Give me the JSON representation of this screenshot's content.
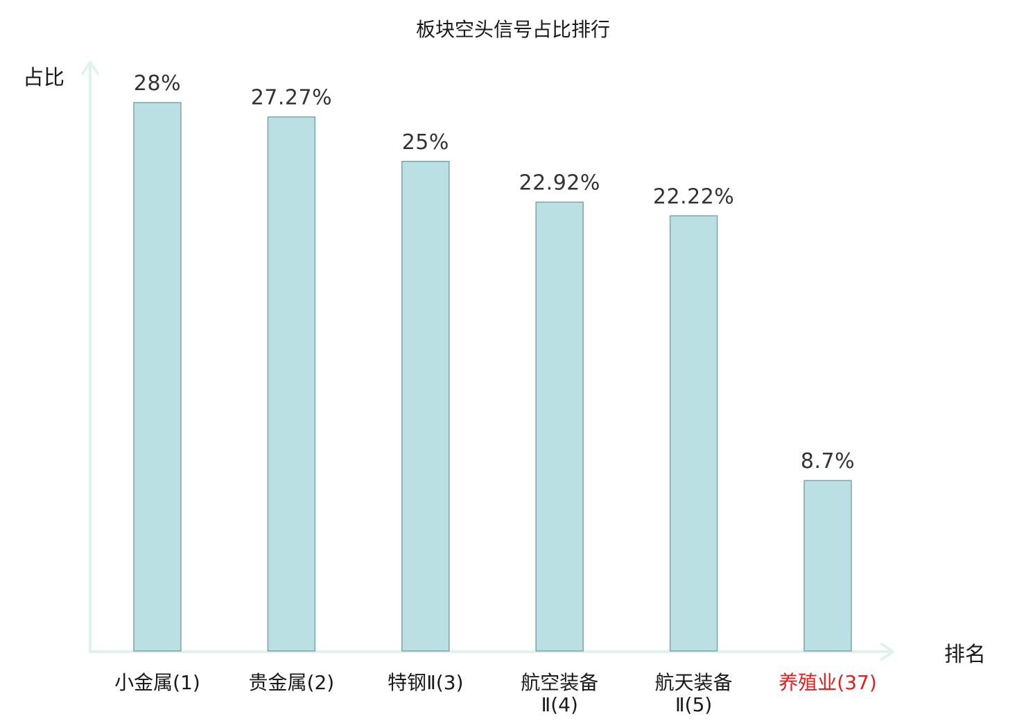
{
  "chart_data": {
    "type": "bar",
    "title": "板块空头信号占比排行",
    "ylabel": "占比",
    "xlabel": "排名",
    "ylim": [
      0,
      30
    ],
    "grid": false,
    "categories": [
      {
        "name": "小金属",
        "rank": "(1)",
        "highlight": false
      },
      {
        "name": "贵金属",
        "rank": "(2)",
        "highlight": false
      },
      {
        "name": "特钢Ⅱ",
        "rank": "(3)",
        "highlight": false
      },
      {
        "name": "航空装备",
        "rank": "Ⅱ(4)",
        "highlight": false
      },
      {
        "name": "航天装备",
        "rank": "Ⅱ(5)",
        "highlight": false
      },
      {
        "name": "养殖业",
        "rank": "(37)",
        "highlight": true
      }
    ],
    "values": [
      28,
      27.27,
      25,
      22.92,
      22.22,
      8.7
    ],
    "data_labels": [
      "28%",
      "27.27%",
      "25%",
      "22.92%",
      "22.22%",
      "8.7%"
    ],
    "colors": {
      "bar_fill": "#bbe0e3",
      "bar_stroke": "#7fa3a6",
      "axis": "#dff2ee",
      "highlight_text": "#e02020",
      "text": "#1a1a1a",
      "value_text": "#333333"
    }
  }
}
